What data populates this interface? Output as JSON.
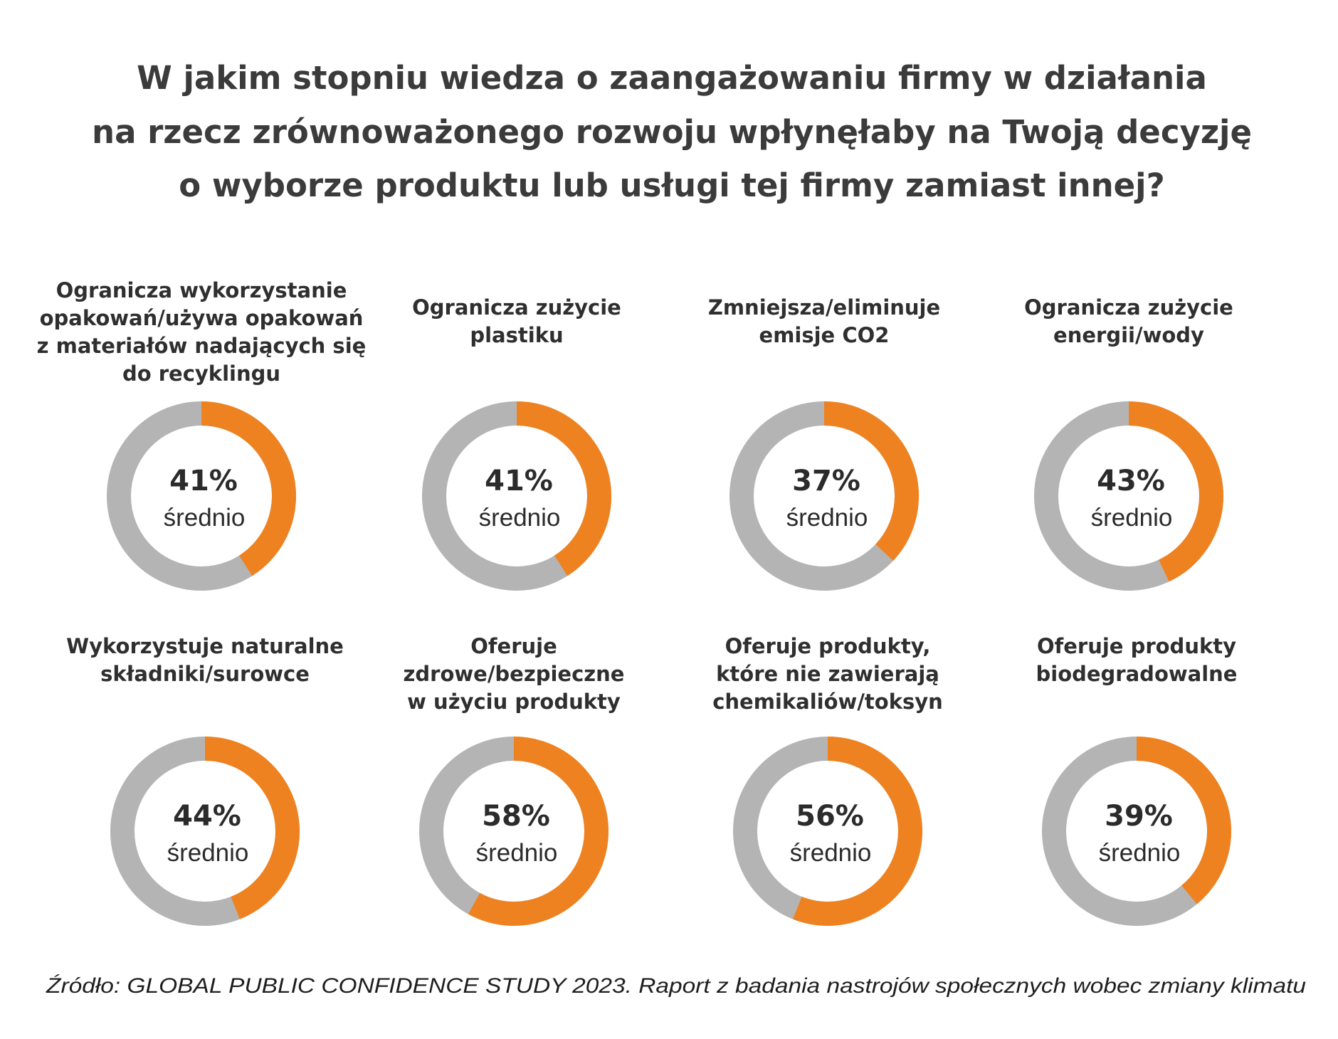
{
  "chart_data": {
    "type": "pie",
    "variant": "donut-grid",
    "title": [
      "W jakim stopniu wiedza o zaangażowaniu firmy w działania",
      "na rzecz zrównoważonego rozwoju wpłynęłaby na Twoją decyzję",
      "o wyborze produktu lub usługi tej firmy zamiast innej?"
    ],
    "avg_label": "średnio",
    "colors": {
      "value": "#EE8220",
      "rest": "#B4B4B4"
    },
    "items": [
      {
        "label": [
          "Ogranicza wykorzystanie",
          "opakowań/używa opakowań",
          "z materiałów nadających się",
          "do recyklingu"
        ],
        "value": 41
      },
      {
        "label": [
          "Ogranicza zużycie",
          "plastiku"
        ],
        "value": 41
      },
      {
        "label": [
          "Zmniejsza/eliminuje",
          "emisje CO2"
        ],
        "value": 37
      },
      {
        "label": [
          "Ogranicza zużycie",
          "energii/wody"
        ],
        "value": 43
      },
      {
        "label": [
          "Wykorzystuje naturalne",
          "składniki/surowce"
        ],
        "value": 44
      },
      {
        "label": [
          "Oferuje",
          "zdrowe/bezpieczne",
          "w użyciu produkty"
        ],
        "value": 58
      },
      {
        "label": [
          "Oferuje produkty,",
          "które nie zawierają",
          "chemikaliów/toksyn"
        ],
        "value": 56
      },
      {
        "label": [
          "Oferuje produkty",
          "biodegradowalne"
        ],
        "value": 39
      }
    ],
    "source": "Źródło: GLOBAL PUBLIC CONFIDENCE STUDY 2023. Raport z badania nastrojów społecznych wobec zmiany klimatu"
  }
}
